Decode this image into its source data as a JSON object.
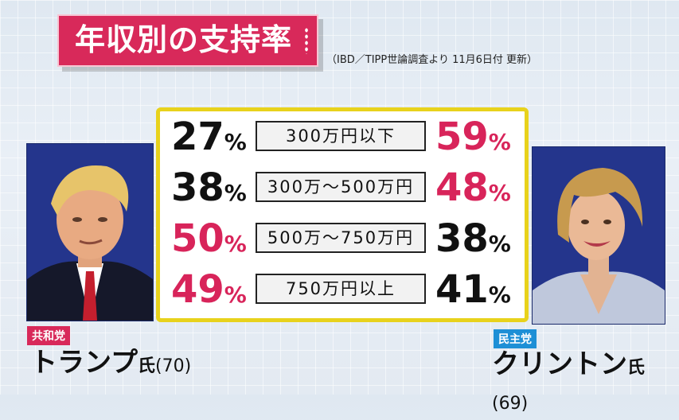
{
  "title": "年収別の支持率",
  "source": "（IBD／TIPP世論調査より 11月6日付 更新）",
  "rows": [
    {
      "left": "27",
      "category": "300万円以下",
      "right": "59",
      "left_color": "black",
      "right_color": "red"
    },
    {
      "left": "38",
      "category": "300万～500万円",
      "right": "48",
      "left_color": "black",
      "right_color": "red"
    },
    {
      "left": "50",
      "category": "500万～750万円",
      "right": "38",
      "left_color": "red",
      "right_color": "black"
    },
    {
      "left": "49",
      "category": "750万円以上",
      "right": "41",
      "left_color": "red",
      "right_color": "black"
    }
  ],
  "percent_sign": "%",
  "candidates": {
    "rep": {
      "party": "共和党",
      "name": "トランプ",
      "suffix": "氏",
      "age": "(70)"
    },
    "dem": {
      "party": "民主党",
      "name": "クリントン",
      "suffix": "氏",
      "age": "(69)"
    }
  },
  "colors": {
    "accent_red": "#d8245a",
    "panel_border": "#e8d21c",
    "dem_blue": "#1d8fd6"
  }
}
